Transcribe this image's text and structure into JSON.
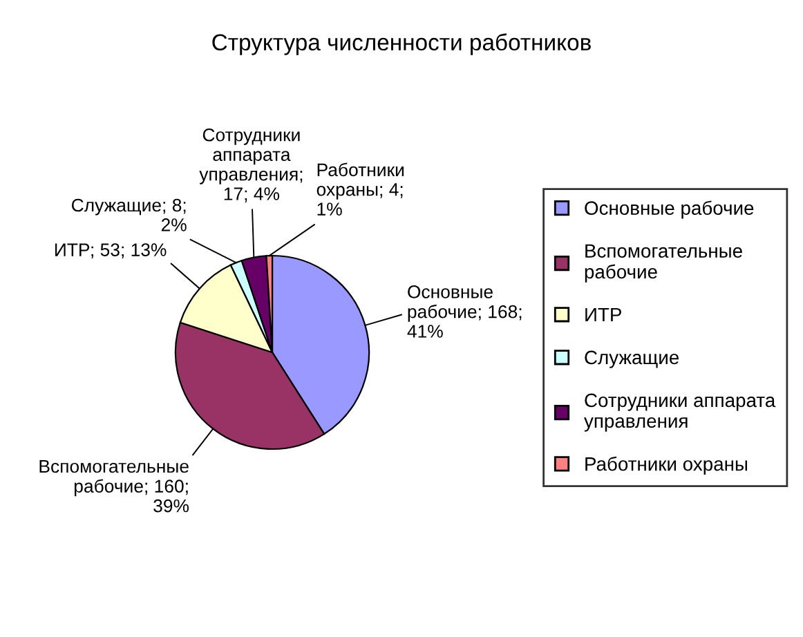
{
  "chart_data": {
    "type": "pie",
    "title": "Структура численности работников",
    "categories": [
      "Основные рабочие",
      "Вспомогательные рабочие",
      "ИТР",
      "Служащие",
      "Сотрудники аппарата управления",
      "Работники охраны"
    ],
    "values": [
      168,
      160,
      53,
      8,
      17,
      4
    ],
    "value_labels": [
      "Основные рабочие; 168; 41%",
      "Вспомогательные рабочие; 160; 39%",
      "ИТР; 53; 13%",
      "Служащие; 8; 2%",
      "Сотрудники аппарата управления; 17; 4%",
      "Работники охраны; 4; 1%"
    ],
    "colors": [
      "#9999ff",
      "#993366",
      "#ffffcc",
      "#ccffff",
      "#660066",
      "#ff8080"
    ],
    "legend": "right"
  }
}
